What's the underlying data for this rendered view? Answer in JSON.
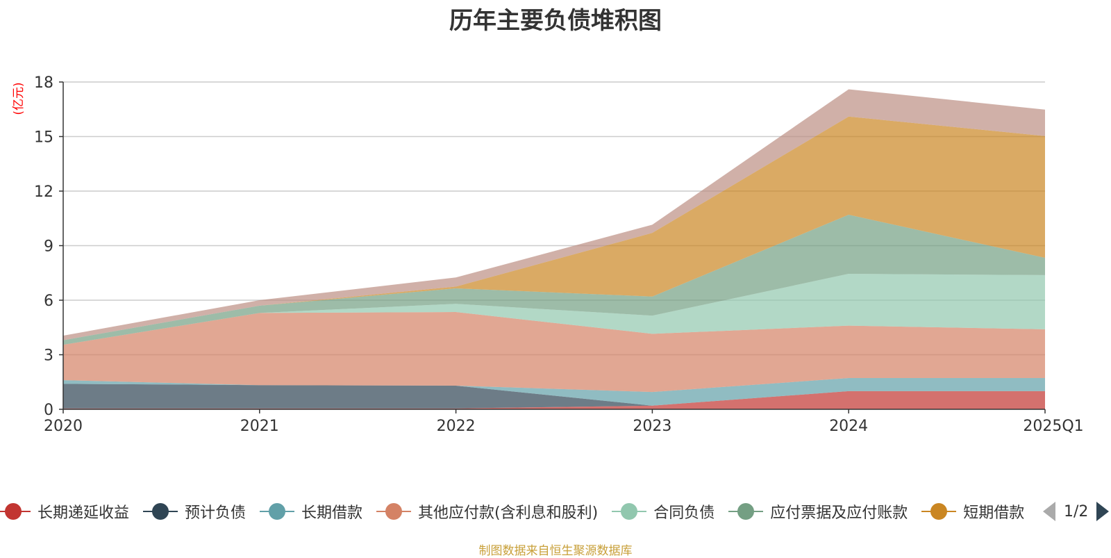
{
  "title": "历年主要负债堆积图",
  "source_note": "制图数据来自恒生聚源数据库",
  "legend": {
    "page_indicator": "1/2",
    "items": [
      {
        "label": "长期递延收益",
        "color": "#c23531"
      },
      {
        "label": "预计负债",
        "color": "#2f4554"
      },
      {
        "label": "长期借款",
        "color": "#61a0a8"
      },
      {
        "label": "其他应付款(含利息和股利)",
        "color": "#d48265"
      },
      {
        "label": "合同负债",
        "color": "#91c7ae"
      },
      {
        "label": "应付票据及应付账款",
        "color": "#749f83"
      },
      {
        "label": "短期借款",
        "color": "#ca8622"
      }
    ]
  },
  "chart_data": {
    "type": "area",
    "stacked": true,
    "title": "历年主要负债堆积图",
    "ylabel": "(亿元)",
    "xlabel": "",
    "categories": [
      "2020",
      "2021",
      "2022",
      "2023",
      "2024",
      "2025Q1"
    ],
    "ylim": [
      0,
      18
    ],
    "yticks": [
      0,
      3,
      6,
      9,
      12,
      15,
      18
    ],
    "grid": true,
    "legend_position": "bottom",
    "series": [
      {
        "name": "长期递延收益",
        "color": "#c23531",
        "values": [
          0.05,
          0.05,
          0.05,
          0.2,
          1.0,
          1.0
        ]
      },
      {
        "name": "预计负债",
        "color": "#2f4554",
        "values": [
          1.35,
          1.28,
          1.25,
          0.0,
          0.0,
          0.0
        ]
      },
      {
        "name": "长期借款",
        "color": "#61a0a8",
        "values": [
          0.2,
          0.0,
          0.0,
          0.75,
          0.72,
          0.72
        ]
      },
      {
        "name": "其他应付款(含利息和股利)",
        "color": "#d48265",
        "values": [
          1.95,
          3.97,
          4.05,
          3.2,
          2.88,
          2.68
        ]
      },
      {
        "name": "合同负债",
        "color": "#91c7ae",
        "values": [
          0.0,
          0.0,
          0.45,
          1.0,
          2.85,
          2.98
        ]
      },
      {
        "name": "应付票据及应付账款",
        "color": "#749f83",
        "values": [
          0.25,
          0.4,
          0.85,
          1.05,
          3.25,
          0.95
        ]
      },
      {
        "name": "短期借款",
        "color": "#ca8622",
        "values": [
          0.0,
          0.0,
          0.1,
          3.5,
          5.4,
          6.7
        ]
      },
      {
        "name": "",
        "color": "#bc8f83",
        "values": [
          0.25,
          0.3,
          0.5,
          0.45,
          1.5,
          1.45
        ]
      }
    ]
  }
}
